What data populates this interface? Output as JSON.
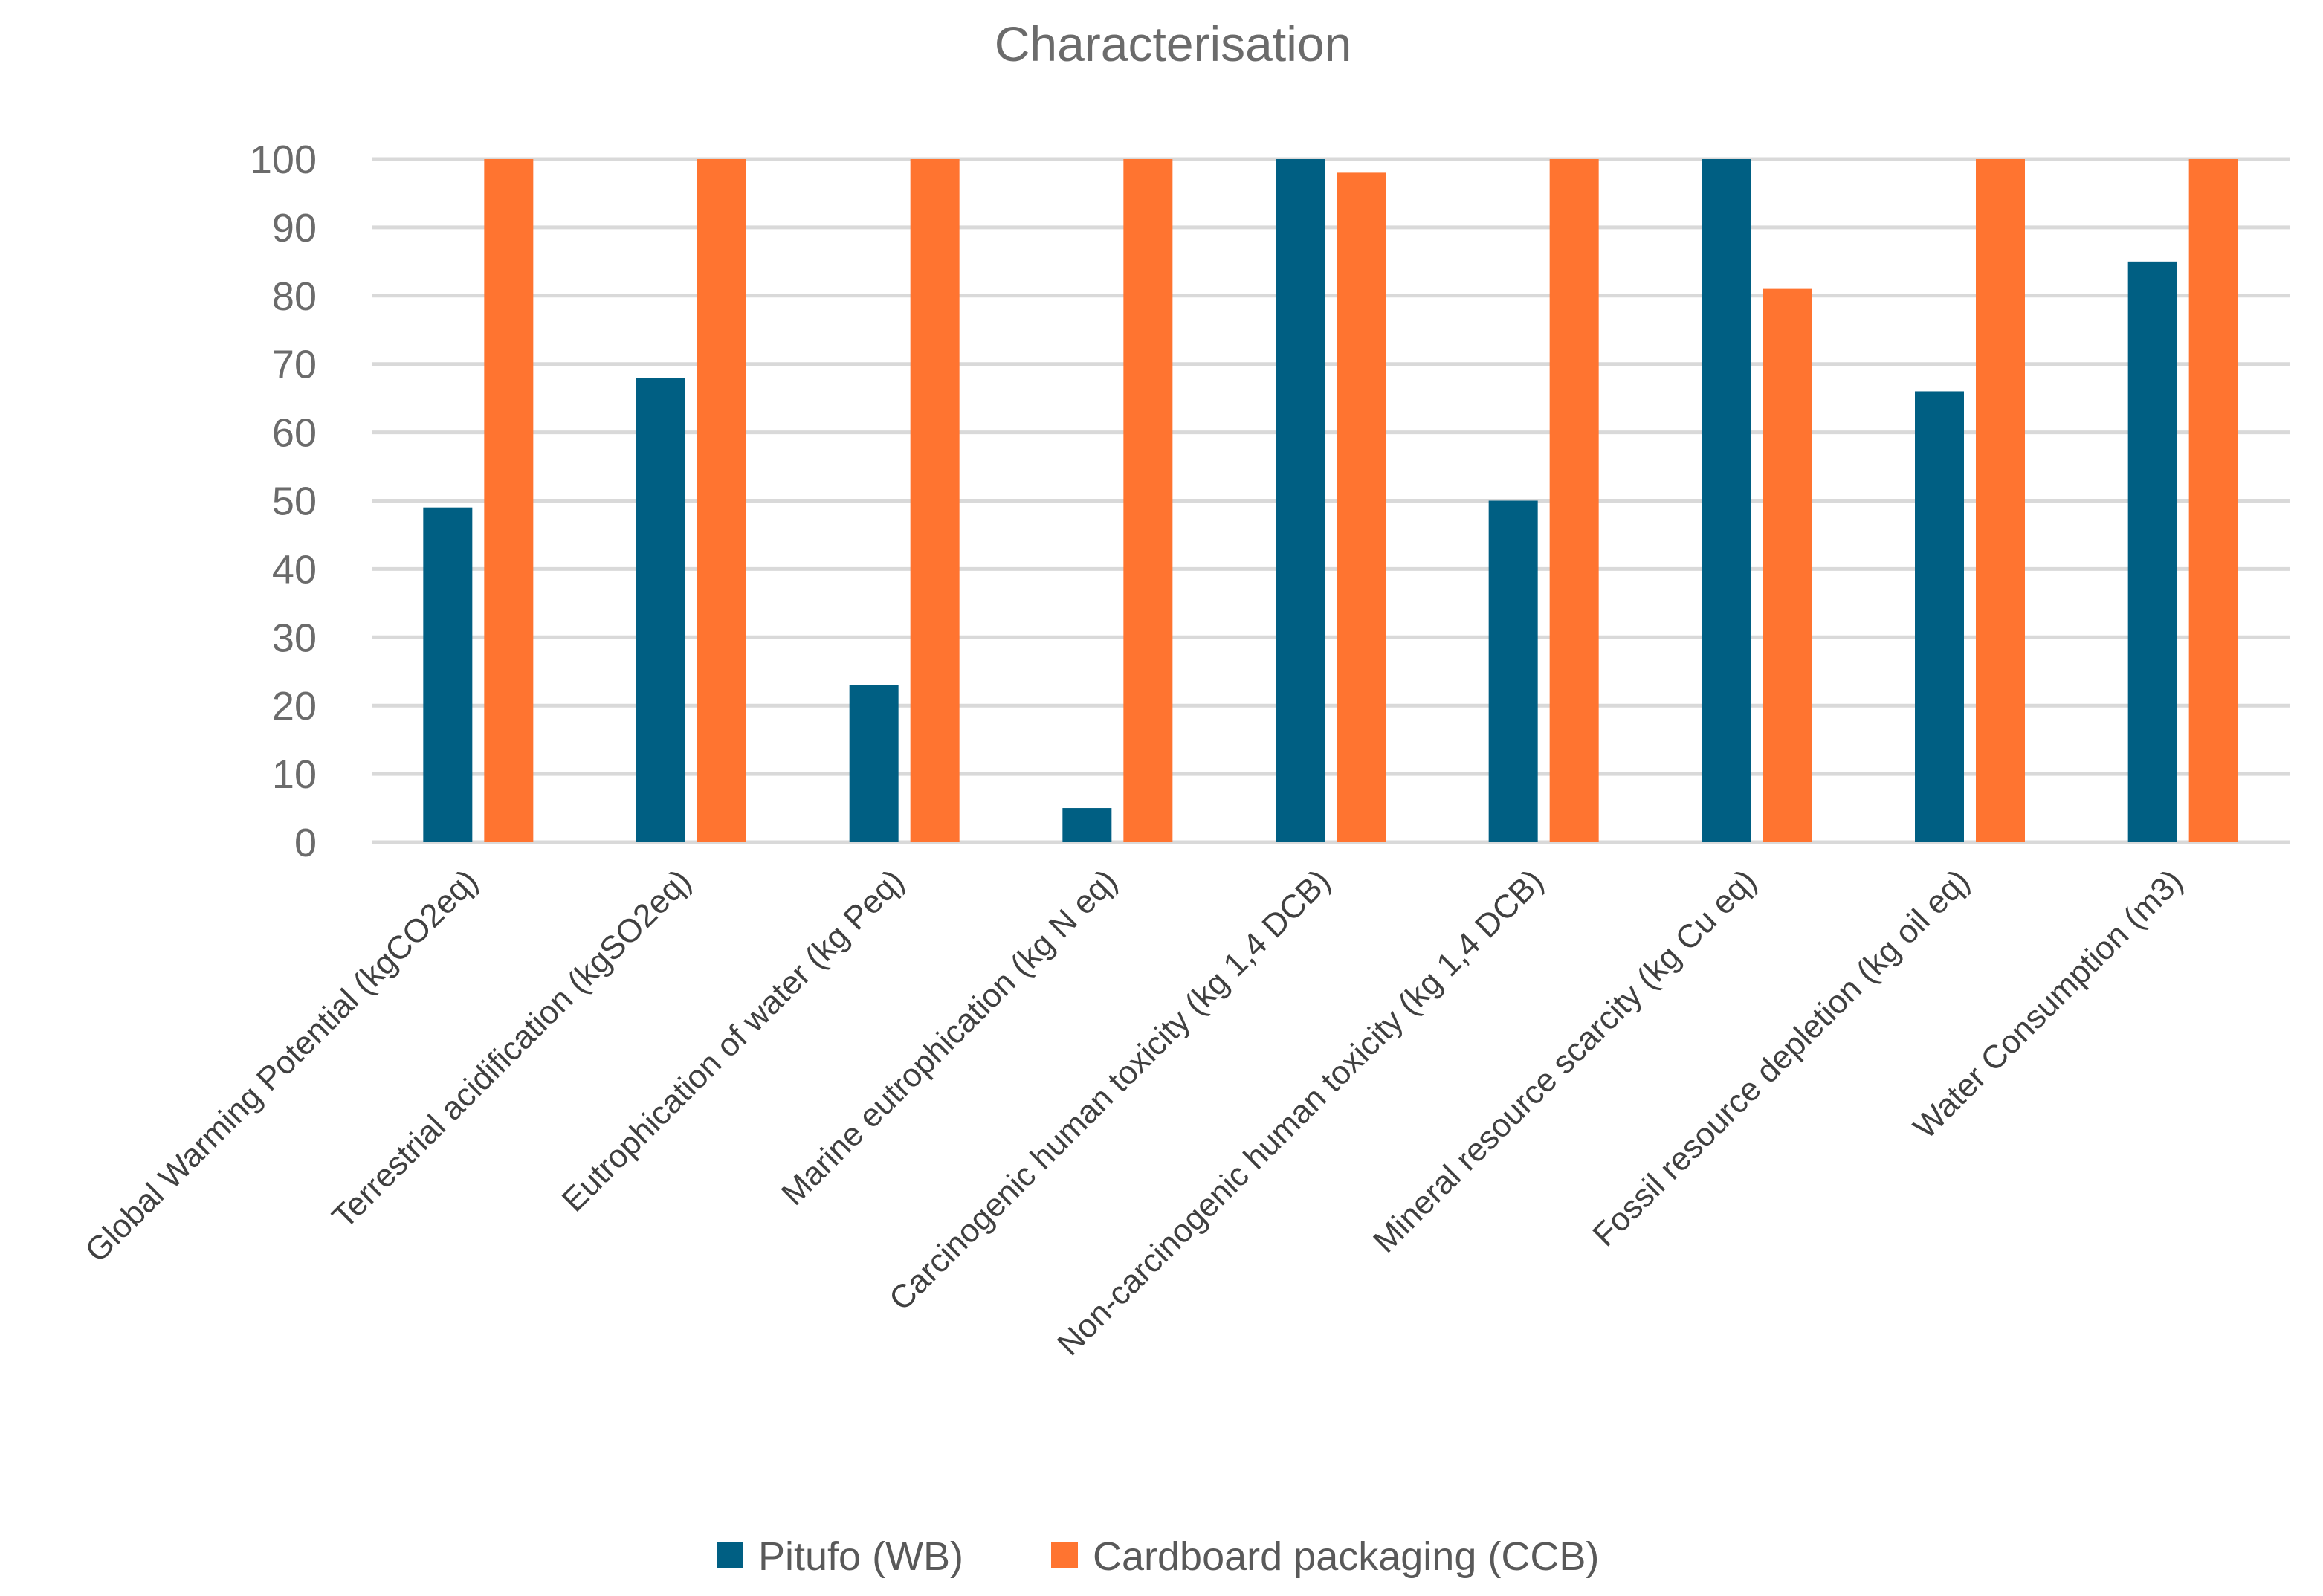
{
  "chart_data": {
    "type": "bar",
    "title": "Characterisation",
    "xlabel": "",
    "ylabel": "",
    "ylim": [
      0,
      100
    ],
    "yticks": [
      0,
      10,
      20,
      30,
      40,
      50,
      60,
      70,
      80,
      90,
      100
    ],
    "grid": true,
    "legend_position": "bottom",
    "categories": [
      "Global Warming Potential (kgCO2eq)",
      "Terrestrial acidification (kgSO2eq)",
      "Eutrophication of water (kg Peq)",
      "Marine eutrophication (kg N eq)",
      "Carcinogenic human toxicity (kg 1,4 DCB)",
      "Non-carcinogenic human toxicity (kg 1,4 DCB)",
      "Mineral resource scarcity (kg Cu eq)",
      "Fossil resource depletion (kg oil eq)",
      "Water Consumption (m3)"
    ],
    "series": [
      {
        "name": "Pitufo (WB)",
        "color": "#005f83",
        "values": [
          49,
          68,
          23,
          5,
          100,
          50,
          100,
          66,
          85
        ]
      },
      {
        "name": "Cardboard packaging (CCB)",
        "color": "#ff7430",
        "values": [
          100,
          100,
          100,
          100,
          98,
          100,
          81,
          100,
          100
        ]
      }
    ]
  }
}
